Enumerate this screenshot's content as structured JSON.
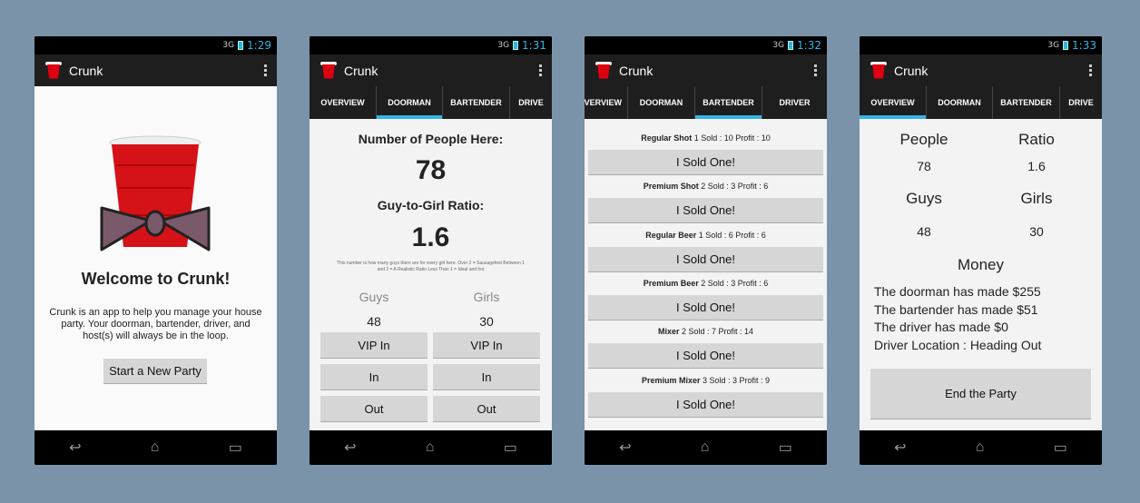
{
  "screens": [
    {
      "time": "1:29",
      "signal": "3G",
      "app_title": "Crunk",
      "welcome_title": "Welcome to Crunk!",
      "welcome_text": "Crunk is an app to help you manage your house party. Your doorman, bartender, driver, and host(s) will always be in the loop.",
      "start_button": "Start a New Party"
    },
    {
      "time": "1:31",
      "signal": "3G",
      "app_title": "Crunk",
      "tabs": [
        "OVERVIEW",
        "DOORMAN",
        "BARTENDER",
        "DRIVE"
      ],
      "people_label": "Number of People Here:",
      "people_value": "78",
      "ratio_label": "Guy-to-Girl Ratio:",
      "ratio_value": "1.6",
      "ratio_note": "This number is how many guys there are for every girl here. Over 2 = Sausagefest Between 1 and 2 = A Realistic Ratio Less Than 1 = Ideal and hot",
      "guys_label": "Guys",
      "girls_label": "Girls",
      "guys_value": "48",
      "girls_value": "30",
      "vip_in": "VIP In",
      "in": "In",
      "out": "Out"
    },
    {
      "time": "1:32",
      "signal": "3G",
      "app_title": "Crunk",
      "tabs": [
        "VERVIEW",
        "DOORMAN",
        "BARTENDER",
        "DRIVER"
      ],
      "sold_button": "I Sold One!",
      "items": [
        {
          "name": "Regular Shot",
          "detail": "1   Sold : 10  Profit : 10"
        },
        {
          "name": "Premium Shot",
          "detail": "2   Sold : 3  Profit : 6"
        },
        {
          "name": "Regular Beer",
          "detail": "1  Sold : 6  Profit : 6"
        },
        {
          "name": "Premium Beer",
          "detail": "2  Sold : 3  Profit : 6"
        },
        {
          "name": "Mixer",
          "detail": "2  Sold : 7  Profit : 14"
        },
        {
          "name": "Premium Mixer",
          "detail": "3  Sold : 3  Profit : 9"
        }
      ]
    },
    {
      "time": "1:33",
      "signal": "3G",
      "app_title": "Crunk",
      "tabs": [
        "OVERVIEW",
        "DOORMAN",
        "BARTENDER",
        "DRIVE"
      ],
      "people_label": "People",
      "ratio_label": "Ratio",
      "people_value": "78",
      "ratio_value": "1.6",
      "guys_label": "Guys",
      "girls_label": "Girls",
      "guys_value": "48",
      "girls_value": "30",
      "money_label": "Money",
      "lines": [
        "The doorman has made $255",
        "The bartender has made $51",
        "The driver has made $0",
        "Driver Location : Heading Out"
      ],
      "end_button": "End the Party"
    }
  ]
}
